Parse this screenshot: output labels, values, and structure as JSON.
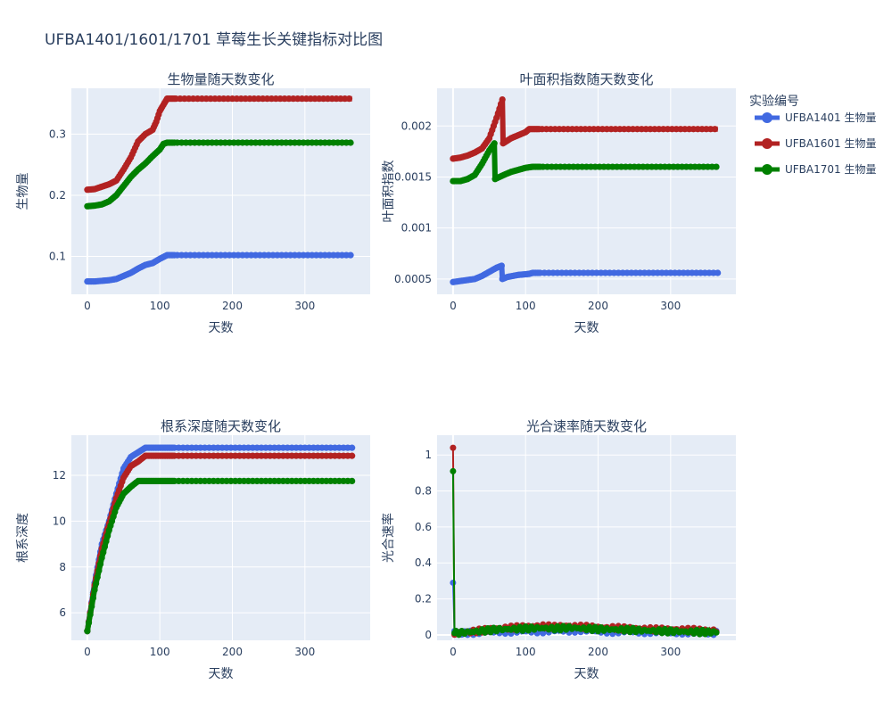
{
  "title": "UFBA1401/1601/1701 草莓生长关键指标对比图",
  "legend": {
    "title": "实验编号",
    "items": [
      {
        "label": "UFBA1401 生物量",
        "color": "#4169e1"
      },
      {
        "label": "UFBA1601 生物量",
        "color": "#b22222"
      },
      {
        "label": "UFBA1701 生物量",
        "color": "#008000"
      }
    ]
  },
  "colors": {
    "plot_bg": "#e5ecf6",
    "grid": "#ffffff",
    "text": "#2a3f5f"
  },
  "chart_data": [
    {
      "type": "line",
      "title": "生物量随天数变化",
      "xlabel": "天数",
      "ylabel": "生物量",
      "xlim": [
        -22,
        390
      ],
      "ylim": [
        0.038,
        0.375
      ],
      "xticks": [
        0,
        100,
        200,
        300
      ],
      "yticks": [
        0.1,
        0.2,
        0.3
      ],
      "ytick_labels": [
        "0.1",
        "0.2",
        "0.3"
      ],
      "series": [
        {
          "name": "UFBA1401 生物量",
          "color": "#4169e1",
          "points": [
            [
              0,
              0.059
            ],
            [
              10,
              0.059
            ],
            [
              20,
              0.06
            ],
            [
              30,
              0.061
            ],
            [
              40,
              0.063
            ],
            [
              50,
              0.068
            ],
            [
              60,
              0.073
            ],
            [
              70,
              0.08
            ],
            [
              80,
              0.086
            ],
            [
              90,
              0.089
            ],
            [
              100,
              0.096
            ],
            [
              105,
              0.099
            ],
            [
              110,
              0.102
            ],
            [
              200,
              0.102
            ],
            [
              300,
              0.102
            ],
            [
              365,
              0.102
            ]
          ]
        },
        {
          "name": "UFBA1601 生物量",
          "color": "#b22222",
          "points": [
            [
              0,
              0.209
            ],
            [
              10,
              0.21
            ],
            [
              20,
              0.214
            ],
            [
              30,
              0.218
            ],
            [
              40,
              0.224
            ],
            [
              50,
              0.242
            ],
            [
              60,
              0.262
            ],
            [
              70,
              0.288
            ],
            [
              80,
              0.3
            ],
            [
              90,
              0.307
            ],
            [
              95,
              0.32
            ],
            [
              100,
              0.338
            ],
            [
              105,
              0.348
            ],
            [
              110,
              0.358
            ],
            [
              200,
              0.358
            ],
            [
              300,
              0.358
            ],
            [
              365,
              0.358
            ]
          ]
        },
        {
          "name": "UFBA1701 生物量",
          "color": "#008000",
          "points": [
            [
              0,
              0.182
            ],
            [
              10,
              0.183
            ],
            [
              20,
              0.185
            ],
            [
              30,
              0.19
            ],
            [
              40,
              0.2
            ],
            [
              50,
              0.215
            ],
            [
              60,
              0.23
            ],
            [
              70,
              0.242
            ],
            [
              80,
              0.252
            ],
            [
              90,
              0.264
            ],
            [
              100,
              0.275
            ],
            [
              105,
              0.284
            ],
            [
              110,
              0.286
            ],
            [
              200,
              0.286
            ],
            [
              300,
              0.286
            ],
            [
              365,
              0.286
            ]
          ]
        }
      ]
    },
    {
      "type": "line",
      "title": "叶面积指数随天数变化",
      "xlabel": "天数",
      "ylabel": "叶面积指数",
      "xlim": [
        -22,
        390
      ],
      "ylim": [
        0.00035,
        0.00237
      ],
      "xticks": [
        0,
        100,
        200,
        300
      ],
      "yticks": [
        0.0005,
        0.001,
        0.0015,
        0.002
      ],
      "ytick_labels": [
        "0.0005",
        "0.001",
        "0.0015",
        "0.002"
      ],
      "series": [
        {
          "name": "UFBA1401 生物量",
          "color": "#4169e1",
          "points": [
            [
              0,
              0.00047
            ],
            [
              10,
              0.00048
            ],
            [
              20,
              0.00049
            ],
            [
              30,
              0.0005
            ],
            [
              40,
              0.00053
            ],
            [
              50,
              0.00057
            ],
            [
              60,
              0.00061
            ],
            [
              67,
              0.00063
            ],
            [
              68,
              0.0005
            ],
            [
              75,
              0.00052
            ],
            [
              90,
              0.00054
            ],
            [
              105,
              0.00055
            ],
            [
              110,
              0.00056
            ],
            [
              200,
              0.00056
            ],
            [
              300,
              0.00056
            ],
            [
              365,
              0.00056
            ]
          ]
        },
        {
          "name": "UFBA1601 生物量",
          "color": "#b22222",
          "points": [
            [
              0,
              0.00168
            ],
            [
              10,
              0.00169
            ],
            [
              20,
              0.00171
            ],
            [
              30,
              0.00174
            ],
            [
              40,
              0.00178
            ],
            [
              50,
              0.00188
            ],
            [
              60,
              0.00208
            ],
            [
              68,
              0.00226
            ],
            [
              69,
              0.00183
            ],
            [
              80,
              0.00188
            ],
            [
              90,
              0.00191
            ],
            [
              100,
              0.00194
            ],
            [
              105,
              0.00197
            ],
            [
              200,
              0.00197
            ],
            [
              300,
              0.00197
            ],
            [
              365,
              0.00197
            ]
          ]
        },
        {
          "name": "UFBA1701 生物量",
          "color": "#008000",
          "points": [
            [
              0,
              0.00146
            ],
            [
              10,
              0.00146
            ],
            [
              20,
              0.00148
            ],
            [
              30,
              0.00152
            ],
            [
              40,
              0.00163
            ],
            [
              50,
              0.00176
            ],
            [
              57,
              0.00183
            ],
            [
              58,
              0.00148
            ],
            [
              70,
              0.00152
            ],
            [
              80,
              0.00155
            ],
            [
              90,
              0.00157
            ],
            [
              100,
              0.00159
            ],
            [
              110,
              0.0016
            ],
            [
              200,
              0.0016
            ],
            [
              300,
              0.0016
            ],
            [
              365,
              0.0016
            ]
          ]
        }
      ]
    },
    {
      "type": "line",
      "title": "根系深度随天数变化",
      "xlabel": "天数",
      "ylabel": "根系深度",
      "xlim": [
        -22,
        390
      ],
      "ylim": [
        4.8,
        13.75
      ],
      "xticks": [
        0,
        100,
        200,
        300
      ],
      "yticks": [
        6,
        8,
        10,
        12
      ],
      "ytick_labels": [
        "6",
        "8",
        "10",
        "12"
      ],
      "series": [
        {
          "name": "UFBA1401 生物量",
          "color": "#4169e1",
          "points": [
            [
              0,
              5.2
            ],
            [
              10,
              7.3
            ],
            [
              20,
              9.0
            ],
            [
              30,
              10.0
            ],
            [
              40,
              11.2
            ],
            [
              50,
              12.3
            ],
            [
              60,
              12.8
            ],
            [
              70,
              13.0
            ],
            [
              80,
              13.2
            ],
            [
              200,
              13.2
            ],
            [
              300,
              13.2
            ],
            [
              365,
              13.2
            ]
          ]
        },
        {
          "name": "UFBA1601 生物量",
          "color": "#b22222",
          "points": [
            [
              0,
              5.2
            ],
            [
              10,
              7.2
            ],
            [
              20,
              8.8
            ],
            [
              30,
              9.9
            ],
            [
              40,
              11.0
            ],
            [
              50,
              11.9
            ],
            [
              60,
              12.4
            ],
            [
              70,
              12.6
            ],
            [
              80,
              12.85
            ],
            [
              200,
              12.85
            ],
            [
              300,
              12.85
            ],
            [
              365,
              12.85
            ]
          ]
        },
        {
          "name": "UFBA1701 生物量",
          "color": "#008000",
          "points": [
            [
              0,
              5.2
            ],
            [
              10,
              7.0
            ],
            [
              20,
              8.4
            ],
            [
              30,
              9.6
            ],
            [
              40,
              10.6
            ],
            [
              50,
              11.2
            ],
            [
              60,
              11.5
            ],
            [
              70,
              11.75
            ],
            [
              200,
              11.75
            ],
            [
              300,
              11.75
            ],
            [
              365,
              11.75
            ]
          ]
        }
      ]
    },
    {
      "type": "scatter",
      "title": "光合速率随天数变化",
      "xlabel": "天数",
      "ylabel": "光合速率",
      "xlim": [
        -22,
        390
      ],
      "ylim": [
        -0.03,
        1.11
      ],
      "xticks": [
        0,
        100,
        200,
        300
      ],
      "yticks": [
        0,
        0.2,
        0.4,
        0.6,
        0.8,
        1
      ],
      "ytick_labels": [
        "0",
        "0.2",
        "0.4",
        "0.6",
        "0.8",
        "1"
      ],
      "series": [
        {
          "name": "UFBA1401 生物量",
          "color": "#4169e1",
          "spike": [
            0,
            0.29
          ],
          "points": [
            [
              0,
              0.29
            ],
            [
              2,
              0.01
            ],
            [
              20,
              0.01
            ],
            [
              40,
              0.015
            ],
            [
              60,
              0.02
            ],
            [
              80,
              0.018
            ],
            [
              100,
              0.022
            ],
            [
              120,
              0.02
            ],
            [
              140,
              0.025
            ],
            [
              160,
              0.022
            ],
            [
              180,
              0.028
            ],
            [
              200,
              0.02
            ],
            [
              220,
              0.018
            ],
            [
              240,
              0.02
            ],
            [
              260,
              0.016
            ],
            [
              280,
              0.018
            ],
            [
              300,
              0.015
            ],
            [
              320,
              0.014
            ],
            [
              340,
              0.012
            ],
            [
              365,
              0.01
            ]
          ]
        },
        {
          "name": "UFBA1601 生物量",
          "color": "#b22222",
          "spike": [
            0,
            1.04
          ],
          "points": [
            [
              0,
              1.04
            ],
            [
              2,
              0.01
            ],
            [
              20,
              0.015
            ],
            [
              40,
              0.025
            ],
            [
              60,
              0.035
            ],
            [
              80,
              0.04
            ],
            [
              100,
              0.045
            ],
            [
              120,
              0.05
            ],
            [
              140,
              0.045
            ],
            [
              160,
              0.05
            ],
            [
              180,
              0.045
            ],
            [
              200,
              0.04
            ],
            [
              220,
              0.04
            ],
            [
              240,
              0.035
            ],
            [
              260,
              0.035
            ],
            [
              280,
              0.03
            ],
            [
              300,
              0.03
            ],
            [
              320,
              0.028
            ],
            [
              340,
              0.026
            ],
            [
              365,
              0.025
            ]
          ]
        },
        {
          "name": "UFBA1701 生物量",
          "color": "#008000",
          "spike": [
            0,
            0.91
          ],
          "points": [
            [
              0,
              0.91
            ],
            [
              2,
              0.01
            ],
            [
              20,
              0.015
            ],
            [
              40,
              0.022
            ],
            [
              60,
              0.03
            ],
            [
              80,
              0.032
            ],
            [
              100,
              0.035
            ],
            [
              120,
              0.038
            ],
            [
              140,
              0.035
            ],
            [
              160,
              0.04
            ],
            [
              180,
              0.035
            ],
            [
              200,
              0.032
            ],
            [
              220,
              0.03
            ],
            [
              240,
              0.028
            ],
            [
              260,
              0.025
            ],
            [
              280,
              0.022
            ],
            [
              300,
              0.02
            ],
            [
              320,
              0.018
            ],
            [
              340,
              0.016
            ],
            [
              365,
              0.015
            ]
          ]
        }
      ]
    }
  ]
}
